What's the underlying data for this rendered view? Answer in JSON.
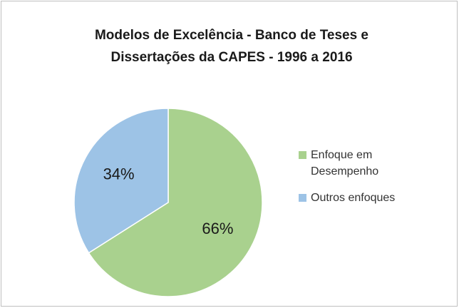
{
  "chart_data": {
    "type": "pie",
    "title": [
      "Modelos de Excelência - Banco de Teses e",
      "Dissertações da CAPES - 1996 a 2016"
    ],
    "categories": [
      "Enfoque em Desempenho",
      "Outros enfoques"
    ],
    "values": [
      66,
      34
    ],
    "value_labels": [
      "66%",
      "34%"
    ],
    "colors": [
      "#a9d18e",
      "#9dc3e6"
    ],
    "legend": "right"
  }
}
